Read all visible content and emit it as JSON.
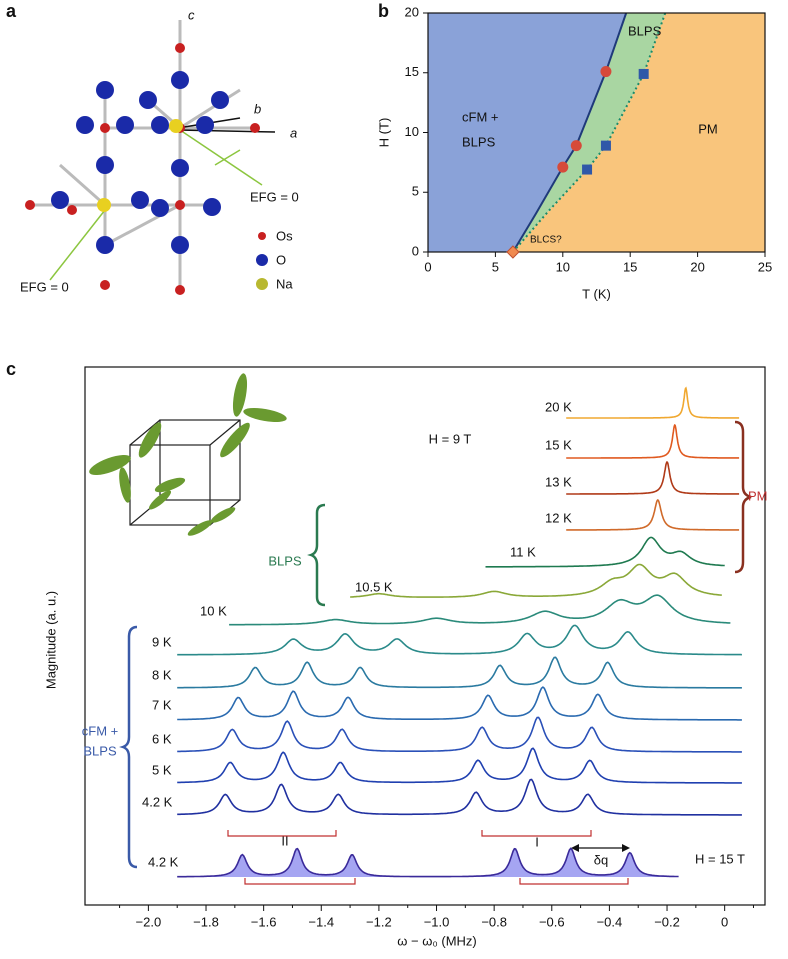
{
  "figure": {
    "panel_labels": [
      "a",
      "b",
      "c"
    ]
  },
  "structure": {
    "axis_labels": [
      "c",
      "b",
      "a"
    ],
    "annotations": [
      "EFG = 0",
      "EFG = 0"
    ],
    "legend": [
      "Os",
      "O",
      "Na"
    ]
  },
  "chart_data": [
    {
      "type": "phase",
      "xlabel": "T (K)",
      "ylabel": "H (T)",
      "xlim": [
        0,
        25
      ],
      "xticks": [
        0,
        5,
        10,
        15,
        20,
        25
      ],
      "ylim": [
        0,
        20
      ],
      "yticks": [
        0,
        5,
        10,
        15,
        20
      ],
      "annotations": [
        "cFM +",
        "BLPS",
        "BLPS",
        "PM",
        "BLCS?"
      ],
      "region_colors": [
        "#8aa2d8",
        "#a9d6a2",
        "#f9c57c"
      ],
      "boundaries": [
        {
          "style": "solid",
          "color": "#1f3a7a",
          "x": [
            6.3,
            8,
            10,
            11,
            13.2,
            14.7
          ],
          "y": [
            0,
            3.2,
            7.1,
            8.9,
            15.1,
            20
          ]
        },
        {
          "style": "dotted",
          "color": "#1a8a6a",
          "x": [
            6.3,
            9,
            11.8,
            13.2,
            16,
            17.6
          ],
          "y": [
            0,
            3.5,
            6.9,
            8.9,
            14.9,
            20
          ]
        }
      ],
      "series": [
        {
          "marker": "circle",
          "color": "#d64a3a",
          "x": [
            10,
            11,
            13.2
          ],
          "y": [
            7.1,
            8.9,
            15.1
          ]
        },
        {
          "marker": "square",
          "color": "#2f58a8",
          "x": [
            11.8,
            13.2,
            16
          ],
          "y": [
            6.9,
            8.9,
            14.9
          ]
        },
        {
          "marker": "diamond",
          "color": "#f08a50",
          "x": [
            6.3
          ],
          "y": [
            0
          ]
        }
      ]
    },
    {
      "type": "spectra",
      "xlabel": "ω − ω₀ (MHz)",
      "ylabel": "Magnitude (a. u.)",
      "xlim": [
        -2.22,
        0.14
      ],
      "xticks": [
        {
          "value": -2.0,
          "label": "−2.0"
        },
        {
          "value": -1.8,
          "label": "−1.8"
        },
        {
          "value": -1.6,
          "label": "−1.6"
        },
        {
          "value": -1.4,
          "label": "−1.4"
        },
        {
          "value": -1.2,
          "label": "−1.2"
        },
        {
          "value": -1.0,
          "label": "−1.0"
        },
        {
          "value": -0.8,
          "label": "−0.8"
        },
        {
          "value": -0.6,
          "label": "−0.6"
        },
        {
          "value": -0.4,
          "label": "−0.4"
        },
        {
          "value": -0.2,
          "label": "−0.2"
        },
        0
      ],
      "xminorticks": [
        -2.1,
        -1.9,
        -1.7,
        -1.5,
        -1.3,
        -1.1,
        -0.9,
        -0.7,
        -0.5,
        -0.3,
        -0.1,
        0.1
      ],
      "annotations": [
        "H = 9 T",
        "H = 15 T",
        "PM",
        "BLPS",
        "cFM +",
        "BLPS",
        "II",
        "I",
        "δq"
      ],
      "traces": [
        {
          "label": "20 K",
          "color": "#f0a830",
          "range": [
            -0.55,
            0.05
          ],
          "width": 0.008,
          "peaks": [
            [
              -0.135,
              30
            ]
          ]
        },
        {
          "label": "15 K",
          "color": "#e05a20",
          "range": [
            -0.55,
            0.05
          ],
          "width": 0.01,
          "peaks": [
            [
              -0.173,
              33
            ]
          ]
        },
        {
          "label": "13 K",
          "color": "#b03a18",
          "range": [
            -0.55,
            0.05
          ],
          "width": 0.012,
          "peaks": [
            [
              -0.2,
              32
            ]
          ]
        },
        {
          "label": "12 K",
          "color": "#d06a2a",
          "range": [
            -0.55,
            0.05
          ],
          "width": 0.015,
          "peaks": [
            [
              -0.232,
              30
            ]
          ]
        },
        {
          "label": "11 K",
          "color": "#1f7a50",
          "range": [
            -0.83,
            0
          ],
          "width": 0.04,
          "peaks": [
            [
              -0.256,
              28
            ],
            [
              -0.152,
              12
            ]
          ]
        },
        {
          "label": "10.5 K",
          "color": "#8aa838",
          "range": [
            -1.3,
            -0.01
          ],
          "width": 0.05,
          "peaks": [
            [
              -0.295,
              28
            ],
            [
              -0.39,
              12
            ],
            [
              -0.173,
              20
            ],
            [
              -0.8,
              6
            ],
            [
              -1.2,
              4
            ]
          ]
        },
        {
          "label": "10 K",
          "color": "#2a8a7a",
          "range": [
            -1.72,
            0.02
          ],
          "width": 0.06,
          "peaks": [
            [
              -0.232,
              26
            ],
            [
              -0.364,
              20
            ],
            [
              -0.624,
              12
            ],
            [
              -1.0,
              6
            ],
            [
              -1.35,
              5
            ]
          ]
        },
        {
          "label": "9 K",
          "color": "#2a8a8a",
          "range": [
            -1.9,
            0.06
          ],
          "width": 0.035,
          "peaks": [
            [
              -1.497,
              15
            ],
            [
              -1.317,
              20
            ],
            [
              -1.137,
              15
            ],
            [
              -0.686,
              20
            ],
            [
              -0.52,
              28
            ],
            [
              -0.336,
              22
            ]
          ]
        },
        {
          "label": "8 K",
          "color": "#2a7aa0",
          "range": [
            -1.9,
            0.06
          ],
          "width": 0.025,
          "peaks": [
            [
              -1.629,
              20
            ],
            [
              -1.449,
              25
            ],
            [
              -1.265,
              20
            ],
            [
              -0.78,
              22
            ],
            [
              -0.589,
              30
            ],
            [
              -0.406,
              25
            ]
          ]
        },
        {
          "label": "7 K",
          "color": "#2a6ab0",
          "range": [
            -1.9,
            0.06
          ],
          "width": 0.025,
          "peaks": [
            [
              -1.688,
              22
            ],
            [
              -1.497,
              28
            ],
            [
              -1.307,
              22
            ],
            [
              -0.821,
              24
            ],
            [
              -0.631,
              32
            ],
            [
              -0.44,
              25
            ]
          ]
        },
        {
          "label": "6 K",
          "color": "#2a50b8",
          "range": [
            -1.9,
            0.06
          ],
          "width": 0.025,
          "peaks": [
            [
              -1.709,
              22
            ],
            [
              -1.518,
              30
            ],
            [
              -1.328,
              22
            ],
            [
              -0.842,
              24
            ],
            [
              -0.648,
              34
            ],
            [
              -0.461,
              24
            ]
          ]
        },
        {
          "label": "5 K",
          "color": "#2040b0",
          "range": [
            -1.9,
            0.06
          ],
          "width": 0.025,
          "peaks": [
            [
              -1.716,
              20
            ],
            [
              -1.532,
              30
            ],
            [
              -1.334,
              20
            ],
            [
              -0.856,
              22
            ],
            [
              -0.666,
              34
            ],
            [
              -0.468,
              22
            ]
          ]
        },
        {
          "label": "4.2 K",
          "color": "#2030a0",
          "range": [
            -1.9,
            0.06
          ],
          "width": 0.025,
          "peaks": [
            [
              -1.733,
              20
            ],
            [
              -1.539,
              30
            ],
            [
              -1.341,
              20
            ],
            [
              -0.863,
              22
            ],
            [
              -0.672,
              35
            ],
            [
              -0.475,
              20
            ]
          ]
        },
        {
          "label": "4.2 K",
          "color": "#3a2a9a",
          "fill": "#8f8fef",
          "range": [
            -1.9,
            -0.16
          ],
          "width": 0.02,
          "peaks": [
            [
              -1.674,
              22
            ],
            [
              -1.484,
              28
            ],
            [
              -1.293,
              22
            ],
            [
              -0.728,
              28
            ],
            [
              -0.534,
              28
            ],
            [
              -0.329,
              24
            ]
          ]
        }
      ]
    }
  ]
}
